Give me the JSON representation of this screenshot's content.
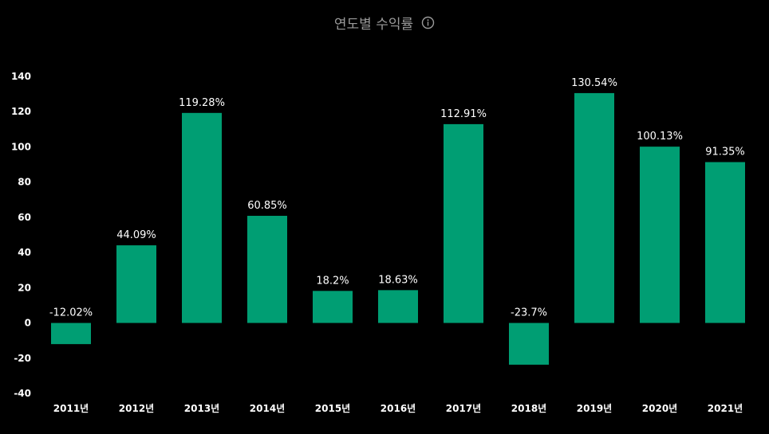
{
  "header": {
    "title": "연도별 수익률",
    "info_icon": "info-circle-icon"
  },
  "colors": {
    "bar": "#009e73",
    "background": "#000000",
    "title": "#9a9a9a",
    "labels": "#ffffff"
  },
  "chart_data": {
    "type": "bar",
    "title": "연도별 수익률",
    "xlabel": "",
    "ylabel": "",
    "categories": [
      "2011년",
      "2012년",
      "2013년",
      "2014년",
      "2015년",
      "2016년",
      "2017년",
      "2018년",
      "2019년",
      "2020년",
      "2021년"
    ],
    "values": [
      -12.02,
      44.09,
      119.28,
      60.85,
      18.2,
      18.63,
      112.91,
      -23.7,
      130.54,
      100.13,
      91.35
    ],
    "data_labels": [
      "-12.02%",
      "44.09%",
      "119.28%",
      "60.85%",
      "18.2%",
      "18.63%",
      "112.91%",
      "-23.7%",
      "130.54%",
      "100.13%",
      "91.35%"
    ],
    "ylim": [
      -40,
      140
    ],
    "yticks": [
      140,
      120,
      100,
      80,
      60,
      40,
      20,
      0,
      -20,
      -40
    ],
    "grid": false,
    "legend": "none"
  }
}
